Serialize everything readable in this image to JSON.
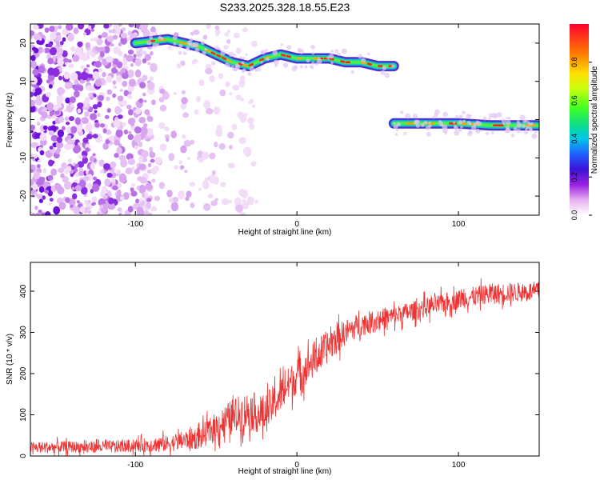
{
  "title": "S233.2025.328.18.55.E23",
  "chart_data": [
    {
      "type": "heatmap",
      "name": "spectrogram",
      "xlabel": "Height of straight line (km)",
      "ylabel": "Frequency (Hz)",
      "xlim": [
        -165,
        150
      ],
      "ylim": [
        -25,
        25
      ],
      "xticks": [
        -100,
        0,
        100
      ],
      "yticks": [
        -20,
        -10,
        0,
        10,
        20
      ],
      "colorbar": {
        "label": "Normalized spectral amplitude",
        "range": [
          0,
          1
        ],
        "ticks": [
          0.0,
          0.2,
          0.4,
          0.6,
          0.8
        ]
      },
      "noise_region": {
        "x_from": -165,
        "x_to": -25,
        "y_from": -25,
        "y_to": 25
      },
      "signal_tracks": [
        {
          "segment": 1,
          "x": [
            -100,
            -80,
            -60,
            -50,
            -40,
            -30,
            -20,
            -10,
            0,
            10,
            20,
            30,
            40,
            50,
            60
          ],
          "frequency": [
            20,
            21,
            19,
            17,
            15,
            14,
            16,
            17,
            16,
            16,
            16,
            15,
            15,
            14,
            14
          ]
        },
        {
          "segment": 2,
          "x": [
            60,
            80,
            100,
            120,
            150
          ],
          "frequency": [
            -1,
            -1,
            -1,
            -1.5,
            -1.5
          ]
        }
      ]
    },
    {
      "type": "line",
      "name": "snr",
      "xlabel": "Height of straight line (km)",
      "ylabel": "SNR (10 * v/v)",
      "xlim": [
        -165,
        150
      ],
      "ylim": [
        0,
        470
      ],
      "xticks": [
        -100,
        0,
        100
      ],
      "yticks": [
        0,
        100,
        200,
        300,
        400
      ],
      "color": "#ee3333",
      "x": [
        -165,
        -140,
        -120,
        -100,
        -80,
        -60,
        -50,
        -40,
        -30,
        -20,
        -10,
        0,
        10,
        20,
        30,
        40,
        60,
        80,
        100,
        120,
        150
      ],
      "y": [
        20,
        22,
        22,
        25,
        30,
        45,
        70,
        95,
        110,
        100,
        150,
        195,
        230,
        270,
        300,
        320,
        340,
        360,
        380,
        395,
        400
      ],
      "noise_amplitude": [
        18,
        18,
        18,
        20,
        25,
        35,
        45,
        55,
        60,
        60,
        55,
        55,
        55,
        50,
        40,
        35,
        30,
        30,
        30,
        30,
        30
      ]
    }
  ]
}
